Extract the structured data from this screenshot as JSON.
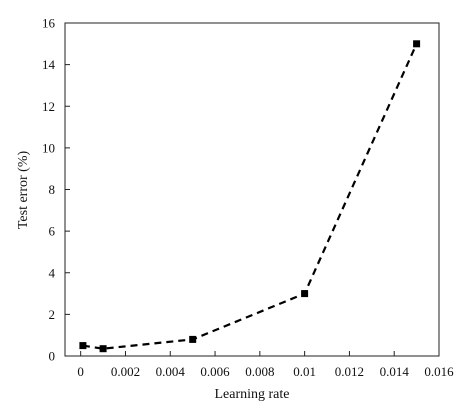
{
  "chart_data": {
    "type": "line",
    "title": "",
    "xlabel": "Learning rate",
    "ylabel": "Test error (%)",
    "xlim": [
      -0.0007,
      0.016
    ],
    "ylim": [
      0,
      16
    ],
    "x_ticks": [
      0,
      0.002,
      0.004,
      0.006,
      0.008,
      0.01,
      0.012,
      0.014,
      0.016
    ],
    "x_tick_labels": [
      "0",
      "0.002",
      "0.004",
      "0.006",
      "0.008",
      "0.01",
      "0.012",
      "0.014",
      "0.016"
    ],
    "y_ticks": [
      0,
      2,
      4,
      6,
      8,
      10,
      12,
      14,
      16
    ],
    "y_tick_labels": [
      "0",
      "2",
      "4",
      "6",
      "8",
      "10",
      "12",
      "14",
      "16"
    ],
    "grid": false,
    "series": [
      {
        "line_style": "dashed",
        "marker": "square",
        "color": "#000000",
        "x": [
          0.0001,
          0.001,
          0.005,
          0.01,
          0.015
        ],
        "y": [
          0.5,
          0.35,
          0.8,
          3.0,
          15.0
        ]
      }
    ]
  }
}
